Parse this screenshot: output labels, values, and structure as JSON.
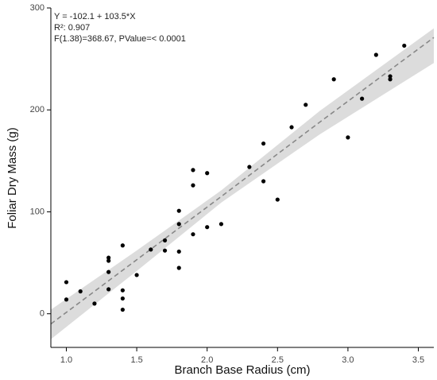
{
  "chart_data": {
    "type": "scatter",
    "x_label": "Branch Base Radius (cm)",
    "y_label": "Foliar Dry Mass (g)",
    "annotations": [
      "Y = -102.1 + 103.5*X",
      "R²: 0.907",
      "F(1.38)=368.67, PValue=< 0.0001"
    ],
    "x": [
      1.0,
      1.0,
      1.1,
      1.2,
      1.3,
      1.3,
      1.3,
      1.3,
      1.4,
      1.4,
      1.4,
      1.4,
      1.5,
      1.6,
      1.7,
      1.7,
      1.8,
      1.8,
      1.8,
      1.8,
      1.9,
      1.9,
      1.9,
      2.0,
      2.0,
      2.1,
      2.3,
      2.4,
      2.4,
      2.5,
      2.6,
      2.7,
      2.9,
      3.0,
      3.1,
      3.2,
      3.3,
      3.3,
      3.4
    ],
    "values": [
      31,
      14,
      22,
      10,
      24,
      41,
      52,
      55,
      67,
      23,
      15,
      4,
      38,
      63,
      72,
      62,
      101,
      88,
      61,
      45,
      141,
      126,
      78,
      138,
      85,
      88,
      144,
      167,
      130,
      112,
      183,
      205,
      230,
      173,
      211,
      254,
      233,
      230,
      263
    ],
    "color": "#000000",
    "fit": {
      "x": [
        0.89,
        1.5,
        2.1,
        2.8,
        3.61
      ],
      "values": [
        -10,
        53,
        115,
        188,
        271
      ],
      "lower": [
        -25,
        42,
        109,
        176,
        246
      ],
      "upper": [
        4,
        62,
        121,
        199,
        280
      ],
      "color": "#888888",
      "band_color": "#dcdcdc"
    },
    "xlim": [
      0.89,
      3.61
    ],
    "ylim": [
      -33,
      300
    ],
    "xticks": [
      {
        "value": 1,
        "label": "1.0"
      },
      {
        "value": 1.5,
        "label": "1.5"
      },
      {
        "value": 2,
        "label": "2.0"
      },
      {
        "value": 2.5,
        "label": "2.5"
      },
      {
        "value": 3,
        "label": "3.0"
      },
      {
        "value": 3.5,
        "label": "3.5"
      }
    ],
    "yticks": [
      0,
      100,
      200,
      300
    ],
    "grid": false
  }
}
